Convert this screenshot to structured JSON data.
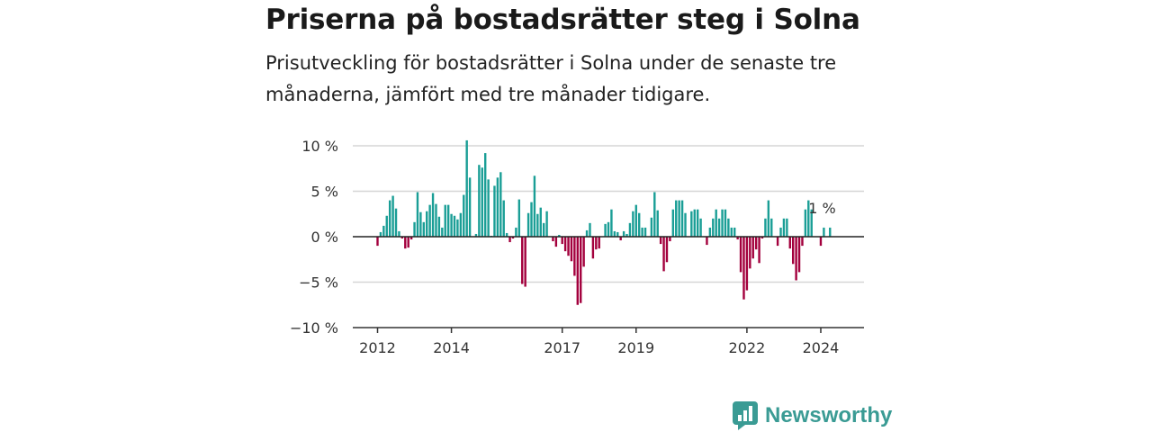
{
  "header": {
    "title": "Priserna på bostadsrätter steg i Solna",
    "subtitle": "Prisutveckling för bostadsrätter i Solna under de senaste tre månaderna, jämfört med tre månader tidigare."
  },
  "brand": {
    "name": "Newsworthy",
    "icon": "newsworthy-logo-icon",
    "color": "#3a9b94"
  },
  "chart_data": {
    "type": "bar",
    "title": "",
    "xlabel": "",
    "ylabel": "",
    "x_start": "2012-01",
    "x_ticks": [
      "2012",
      "2014",
      "2017",
      "2019",
      "2022",
      "2024"
    ],
    "y_ticks": [
      "10 %",
      "5 %",
      "0 %",
      "−5 %",
      "−10 %"
    ],
    "ylim": [
      -10,
      10
    ],
    "grid": true,
    "colors": {
      "positive": "#1a9e96",
      "negative": "#a3003d",
      "grid": "#d6d6d6",
      "zero_line": "#222222",
      "axis": "#333333"
    },
    "end_label": "1 %",
    "values": [
      -1.0,
      0.5,
      1.2,
      2.3,
      4.0,
      4.5,
      3.1,
      0.6,
      -0.2,
      -1.3,
      -1.2,
      -0.3,
      1.6,
      4.9,
      2.7,
      1.6,
      2.8,
      3.5,
      4.8,
      3.6,
      2.2,
      1.0,
      3.5,
      3.5,
      2.5,
      2.3,
      1.9,
      2.6,
      4.6,
      10.6,
      6.5,
      0.0,
      0.3,
      7.9,
      7.6,
      9.2,
      6.3,
      0.1,
      5.6,
      6.5,
      7.1,
      4.0,
      0.4,
      -0.6,
      -0.2,
      1.0,
      4.1,
      -5.2,
      -5.5,
      2.6,
      3.8,
      6.7,
      2.5,
      3.2,
      1.5,
      2.8,
      0.0,
      -0.5,
      -1.1,
      0.2,
      -0.8,
      -1.6,
      -2.1,
      -2.7,
      -4.3,
      -7.5,
      -7.3,
      -3.3,
      0.7,
      1.5,
      -2.4,
      -1.4,
      -1.3,
      0.0,
      1.4,
      1.6,
      3.0,
      0.6,
      0.5,
      -0.4,
      0.6,
      0.3,
      1.5,
      2.8,
      3.5,
      2.6,
      1.0,
      1.0,
      0.0,
      2.1,
      4.9,
      2.9,
      -0.8,
      -3.8,
      -2.8,
      -0.5,
      3.0,
      4.0,
      4.0,
      4.0,
      2.6,
      0.0,
      2.8,
      3.0,
      3.0,
      2.0,
      0.0,
      -0.9,
      1.0,
      2.0,
      3.0,
      2.0,
      3.0,
      3.0,
      2.0,
      1.0,
      1.0,
      -0.3,
      -3.9,
      -6.9,
      -5.9,
      -3.5,
      -2.4,
      -1.4,
      -2.9,
      -0.2,
      2.0,
      4.0,
      2.0,
      0.0,
      -1.0,
      1.0,
      2.0,
      2.0,
      -1.3,
      -3.0,
      -4.8,
      -3.9,
      -1.0,
      3.0,
      4.0,
      3.0,
      0.0,
      0.0,
      -1.0,
      1.0,
      0.0,
      1.0
    ]
  }
}
